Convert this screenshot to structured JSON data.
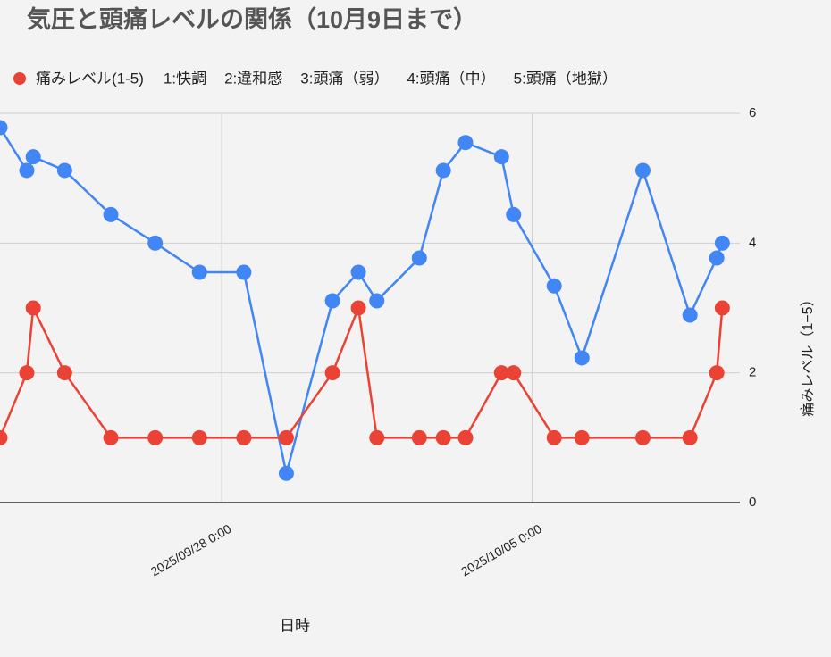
{
  "chart_data": {
    "type": "line",
    "title": "気圧と頭痛レベルの関係（10月9日まで）",
    "notes": [
      "1:快調",
      "2:違和感",
      "3:頭痛（弱）",
      "4:頭痛（中）",
      "5:頭痛（地獄）"
    ],
    "x_label": "日時",
    "y_label": "痛みレベル（1−5）",
    "x": [
      "2025-09-23T00:00",
      "2025-09-23T14:30",
      "2025-09-23T18:00",
      "2025-09-24T11:00",
      "2025-09-25T12:00",
      "2025-09-26T12:00",
      "2025-09-27T12:00",
      "2025-09-28T12:00",
      "2025-09-29T11:00",
      "2025-09-30T12:00",
      "2025-10-01T02:00",
      "2025-10-01T12:00",
      "2025-10-02T11:00",
      "2025-10-03T00:00",
      "2025-10-03T12:00",
      "2025-10-04T07:30",
      "2025-10-04T14:00",
      "2025-10-05T12:00",
      "2025-10-06T03:00",
      "2025-10-07T12:00",
      "2025-10-08T13:30",
      "2025-10-09T04:00",
      "2025-10-09T07:00"
    ],
    "xlim": [
      "2025-09-23T00:00",
      "2025-10-09T16:30"
    ],
    "xticks": [
      {
        "value": "2025-09-28T00:00",
        "label": "2025/09/28 0:00"
      },
      {
        "value": "2025-10-05T00:00",
        "label": "2025/10/05 0:00"
      }
    ],
    "ylim": [
      0,
      6
    ],
    "yticks": [
      0,
      2,
      4,
      6
    ],
    "grid": true,
    "series": [
      {
        "color": "#4285f4",
        "values": [
          5.78,
          5.12,
          5.33,
          5.12,
          4.44,
          4.0,
          3.55,
          3.55,
          0.45,
          3.11,
          3.55,
          3.11,
          3.77,
          5.12,
          5.55,
          5.33,
          4.44,
          3.34,
          2.23,
          5.12,
          2.89,
          3.77,
          4.0
        ]
      },
      {
        "name": "痛みレベル(1-5)",
        "color": "#ea4335",
        "values": [
          1,
          2,
          3,
          2,
          1,
          1,
          1,
          1,
          1,
          2,
          3,
          1,
          1,
          1,
          1,
          2,
          2,
          1,
          1,
          1,
          1,
          2,
          3
        ]
      }
    ]
  }
}
